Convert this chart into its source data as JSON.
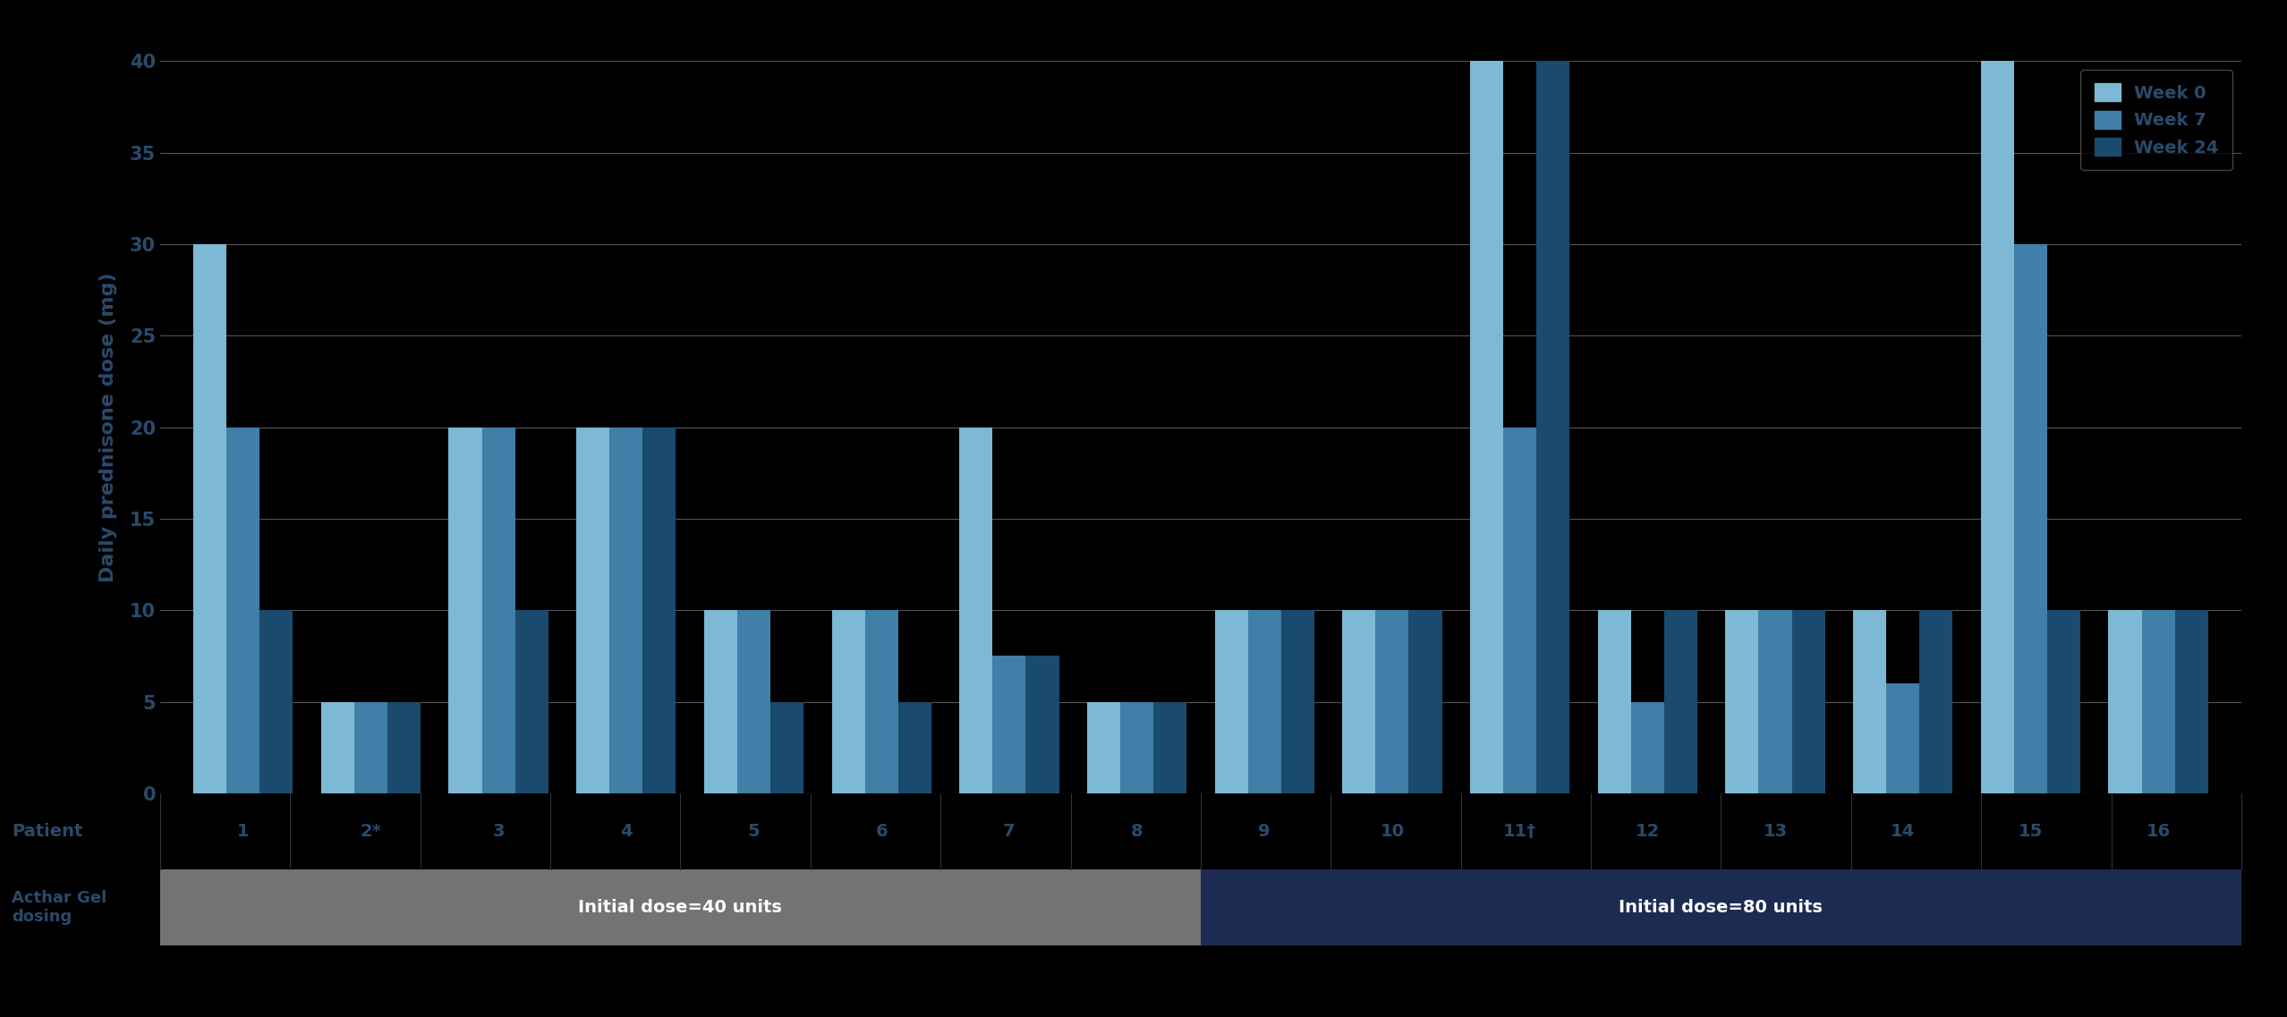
{
  "patients": [
    "1",
    "2*",
    "3",
    "4",
    "5",
    "6",
    "7",
    "8",
    "9",
    "10",
    "11†",
    "12",
    "13",
    "14",
    "15",
    "16"
  ],
  "week0": [
    30,
    5,
    20,
    20,
    10,
    10,
    20,
    5,
    10,
    10,
    40,
    10,
    10,
    10,
    40,
    10
  ],
  "week7": [
    20,
    5,
    20,
    20,
    10,
    10,
    7.5,
    5,
    10,
    10,
    20,
    5,
    10,
    6,
    30,
    10
  ],
  "week24": [
    10,
    5,
    10,
    20,
    5,
    5,
    7.5,
    5,
    10,
    10,
    40,
    10,
    10,
    10,
    10,
    10
  ],
  "color_week0": "#7DB8D4",
  "color_week7": "#3F7FA8",
  "color_week24": "#1A4A6E",
  "ylabel": "Daily prednisone dose (mg)",
  "ylim": [
    0,
    40
  ],
  "yticks": [
    0,
    5,
    10,
    15,
    20,
    25,
    30,
    35,
    40
  ],
  "legend_labels": [
    "Week 0",
    "Week 7",
    "Week 24"
  ],
  "dose40_label": "Initial dose=40 units",
  "dose80_label": "Initial dose=80 units",
  "dose40_color": "#737373",
  "dose80_color": "#1C2B52",
  "patient_label": "Patient",
  "acthar_label": "Acthar Gel\ndosing",
  "background_color": "#000000",
  "text_color": "#2A4A6A",
  "grid_color": "#aaaaaa",
  "bar_width": 0.26,
  "n_dose40": 8,
  "figwidth": 25.56,
  "figheight": 11.37
}
